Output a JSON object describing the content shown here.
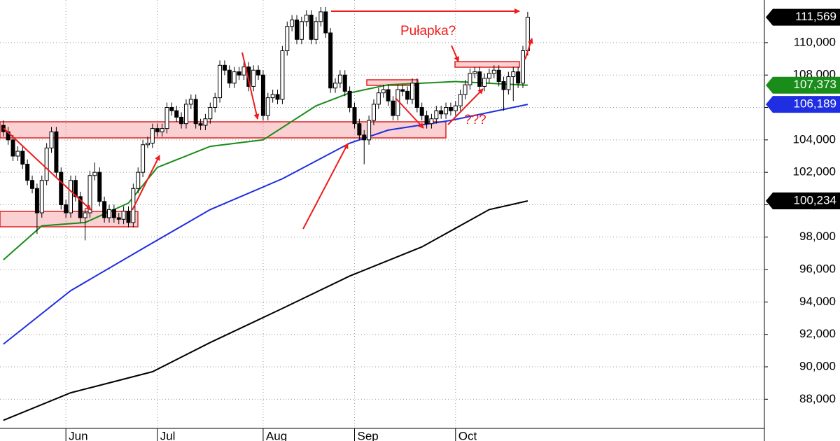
{
  "chart_data": {
    "type": "candlestick",
    "up_color": "#ffffff",
    "down_color": "#000000",
    "wick_color": "#000000",
    "xlim": [
      -0.7,
      158.2
    ],
    "xticks": [
      {
        "value": 13,
        "label": "Jun"
      },
      {
        "value": 32,
        "label": "Jul"
      },
      {
        "value": 54,
        "label": "Aug"
      },
      {
        "value": 73,
        "label": "Sep"
      },
      {
        "value": 94,
        "label": "Oct"
      }
    ],
    "ylim": [
      86200,
      112630
    ],
    "yticks": [
      {
        "value": 88000,
        "label": "88,000"
      },
      {
        "value": 90000,
        "label": "90,000"
      },
      {
        "value": 92000,
        "label": "92,000"
      },
      {
        "value": 94000,
        "label": "94,000"
      },
      {
        "value": 96000,
        "label": "96,000"
      },
      {
        "value": 98000,
        "label": "98,000"
      },
      {
        "value": 100000,
        "label": "100,000"
      },
      {
        "value": 102000,
        "label": "102,000"
      },
      {
        "value": 104000,
        "label": "104,000"
      },
      {
        "value": 106000,
        "label": "106,000"
      },
      {
        "value": 108000,
        "label": "108,000"
      },
      {
        "value": 110000,
        "label": "110,000"
      }
    ],
    "grid": true,
    "candles": [
      [
        104900,
        105200,
        104200,
        104500
      ],
      [
        104500,
        104800,
        103700,
        104000
      ],
      [
        104000,
        104300,
        102700,
        103000
      ],
      [
        103000,
        103600,
        102700,
        103300
      ],
      [
        103300,
        103600,
        102200,
        102500
      ],
      [
        102500,
        102800,
        101200,
        101500
      ],
      [
        101500,
        101800,
        100700,
        101000
      ],
      [
        101000,
        101300,
        98200,
        99500
      ],
      [
        99500,
        101800,
        99200,
        101500
      ],
      [
        101500,
        103800,
        101200,
        103500
      ],
      [
        103500,
        104800,
        103200,
        104500
      ],
      [
        104500,
        104800,
        101700,
        102000
      ],
      [
        102000,
        102300,
        99700,
        100000
      ],
      [
        100000,
        100300,
        99200,
        99500
      ],
      [
        99500,
        101800,
        99200,
        101500
      ],
      [
        101500,
        101800,
        100200,
        100500
      ],
      [
        100500,
        100800,
        98900,
        99200
      ],
      [
        99200,
        99800,
        97800,
        99500
      ],
      [
        99500,
        102100,
        99200,
        101800
      ],
      [
        101800,
        102600,
        101500,
        102000
      ],
      [
        102000,
        102300,
        99900,
        100200
      ],
      [
        100200,
        100500,
        98900,
        99200
      ],
      [
        99200,
        100000,
        98900,
        99700
      ],
      [
        99700,
        100000,
        98900,
        99200
      ],
      [
        99200,
        99500,
        98800,
        99100
      ],
      [
        99100,
        99900,
        98800,
        99600
      ],
      [
        99600,
        99900,
        98600,
        98900
      ],
      [
        98900,
        101300,
        98600,
        101000
      ],
      [
        101000,
        102300,
        100700,
        102000
      ],
      [
        102000,
        104000,
        101700,
        103700
      ],
      [
        103700,
        104200,
        103500,
        103800
      ],
      [
        103800,
        105000,
        103500,
        104700
      ],
      [
        104700,
        105000,
        104200,
        104500
      ],
      [
        104500,
        105000,
        104200,
        104700
      ],
      [
        104700,
        106300,
        104400,
        106000
      ],
      [
        106000,
        106300,
        105500,
        105800
      ],
      [
        105800,
        106100,
        105100,
        105400
      ],
      [
        105400,
        105700,
        104700,
        105000
      ],
      [
        105000,
        106500,
        104700,
        106200
      ],
      [
        106200,
        106800,
        105900,
        106500
      ],
      [
        106500,
        106800,
        104700,
        105000
      ],
      [
        105000,
        105300,
        104600,
        104900
      ],
      [
        104900,
        105600,
        104600,
        105300
      ],
      [
        105300,
        106300,
        105000,
        106000
      ],
      [
        106000,
        106900,
        105700,
        106600
      ],
      [
        106600,
        108900,
        106300,
        108600
      ],
      [
        108600,
        108900,
        108000,
        108300
      ],
      [
        108300,
        108600,
        107200,
        107500
      ],
      [
        107500,
        108500,
        107200,
        108200
      ],
      [
        108200,
        108500,
        107700,
        108000
      ],
      [
        108000,
        108800,
        107700,
        108500
      ],
      [
        108500,
        108800,
        107000,
        107300
      ],
      [
        107300,
        108600,
        107000,
        108300
      ],
      [
        108300,
        108600,
        107700,
        108000
      ],
      [
        108000,
        108300,
        105200,
        105500
      ],
      [
        105500,
        106900,
        105200,
        106600
      ],
      [
        106600,
        107100,
        106300,
        106800
      ],
      [
        106800,
        107100,
        106200,
        106500
      ],
      [
        106500,
        109800,
        106200,
        109500
      ],
      [
        109500,
        111300,
        109200,
        111000
      ],
      [
        111000,
        111700,
        110700,
        111400
      ],
      [
        111400,
        111700,
        109900,
        110200
      ],
      [
        110200,
        111600,
        109900,
        111300
      ],
      [
        111300,
        112000,
        111000,
        111700
      ],
      [
        111700,
        112000,
        109900,
        110200
      ],
      [
        110200,
        111600,
        109900,
        111300
      ],
      [
        111300,
        112200,
        111000,
        111900
      ],
      [
        111900,
        112200,
        110300,
        110600
      ],
      [
        110600,
        110900,
        106900,
        107200
      ],
      [
        107200,
        107800,
        106900,
        107500
      ],
      [
        107500,
        108300,
        107200,
        108000
      ],
      [
        108000,
        108300,
        106700,
        107000
      ],
      [
        107000,
        107300,
        105700,
        106000
      ],
      [
        106000,
        106300,
        104700,
        105000
      ],
      [
        105000,
        105300,
        104000,
        104300
      ],
      [
        104300,
        104600,
        102500,
        104000
      ],
      [
        104000,
        105500,
        103700,
        105200
      ],
      [
        105200,
        106500,
        104900,
        106200
      ],
      [
        106200,
        107200,
        105900,
        106900
      ],
      [
        106900,
        107400,
        106600,
        107100
      ],
      [
        107100,
        107400,
        106100,
        106400
      ],
      [
        106400,
        106700,
        105200,
        105500
      ],
      [
        105500,
        107400,
        105200,
        107100
      ],
      [
        107100,
        107400,
        106700,
        107000
      ],
      [
        107000,
        107300,
        106200,
        106500
      ],
      [
        106500,
        107800,
        106200,
        107500
      ],
      [
        107500,
        107800,
        105700,
        106000
      ],
      [
        106000,
        106300,
        105200,
        105500
      ],
      [
        105500,
        105800,
        104700,
        105000
      ],
      [
        105000,
        105600,
        104700,
        105300
      ],
      [
        105300,
        106100,
        105000,
        105800
      ],
      [
        105800,
        106100,
        105300,
        105600
      ],
      [
        105600,
        106300,
        105300,
        106000
      ],
      [
        106000,
        106300,
        105500,
        105800
      ],
      [
        105800,
        106400,
        105500,
        106100
      ],
      [
        106100,
        107100,
        105800,
        106800
      ],
      [
        106800,
        107700,
        106500,
        107400
      ],
      [
        107400,
        108400,
        107100,
        108100
      ],
      [
        108100,
        108500,
        107800,
        108200
      ],
      [
        108200,
        108500,
        107000,
        107300
      ],
      [
        107300,
        108100,
        107000,
        107800
      ],
      [
        107800,
        108400,
        107500,
        108100
      ],
      [
        108100,
        108600,
        107800,
        108300
      ],
      [
        108300,
        108600,
        107300,
        107600
      ],
      [
        107600,
        107900,
        105800,
        107100
      ],
      [
        107100,
        108200,
        106800,
        107900
      ],
      [
        107900,
        108500,
        106400,
        108200
      ],
      [
        108200,
        108500,
        107200,
        107500
      ],
      [
        107500,
        109800,
        107200,
        109500
      ],
      [
        109500,
        111900,
        109200,
        111569
      ]
    ],
    "lines": [
      {
        "color": "#1a8c1a",
        "x": [
          0,
          8,
          17,
          26,
          32,
          43,
          54,
          65,
          72,
          80,
          94,
          109
        ],
        "values": [
          96600,
          98700,
          98900,
          100100,
          102300,
          103600,
          104000,
          106100,
          106900,
          107400,
          107600,
          107373
        ]
      },
      {
        "color": "#1f2ee0",
        "x": [
          0,
          14,
          29,
          43,
          58,
          72,
          80,
          93,
          109
        ],
        "values": [
          91400,
          94700,
          97300,
          99700,
          101600,
          103800,
          104600,
          105200,
          106189
        ]
      },
      {
        "color": "#000000",
        "x": [
          0,
          14,
          31,
          43,
          58,
          72,
          87,
          101,
          109
        ],
        "values": [
          86700,
          88400,
          89700,
          91500,
          93600,
          95600,
          97400,
          99700,
          100234
        ]
      }
    ],
    "price_labels": [
      {
        "value": 111569,
        "label": "111,569",
        "color": "#000000"
      },
      {
        "value": 107373,
        "label": "107,373",
        "color": "#1a8c1a"
      },
      {
        "value": 106189,
        "label": "106,189",
        "color": "#1f2ee0"
      },
      {
        "value": 100234,
        "label": "100,234",
        "color": "#000000"
      }
    ],
    "annotations": [
      "Pułapka?",
      "???"
    ]
  }
}
